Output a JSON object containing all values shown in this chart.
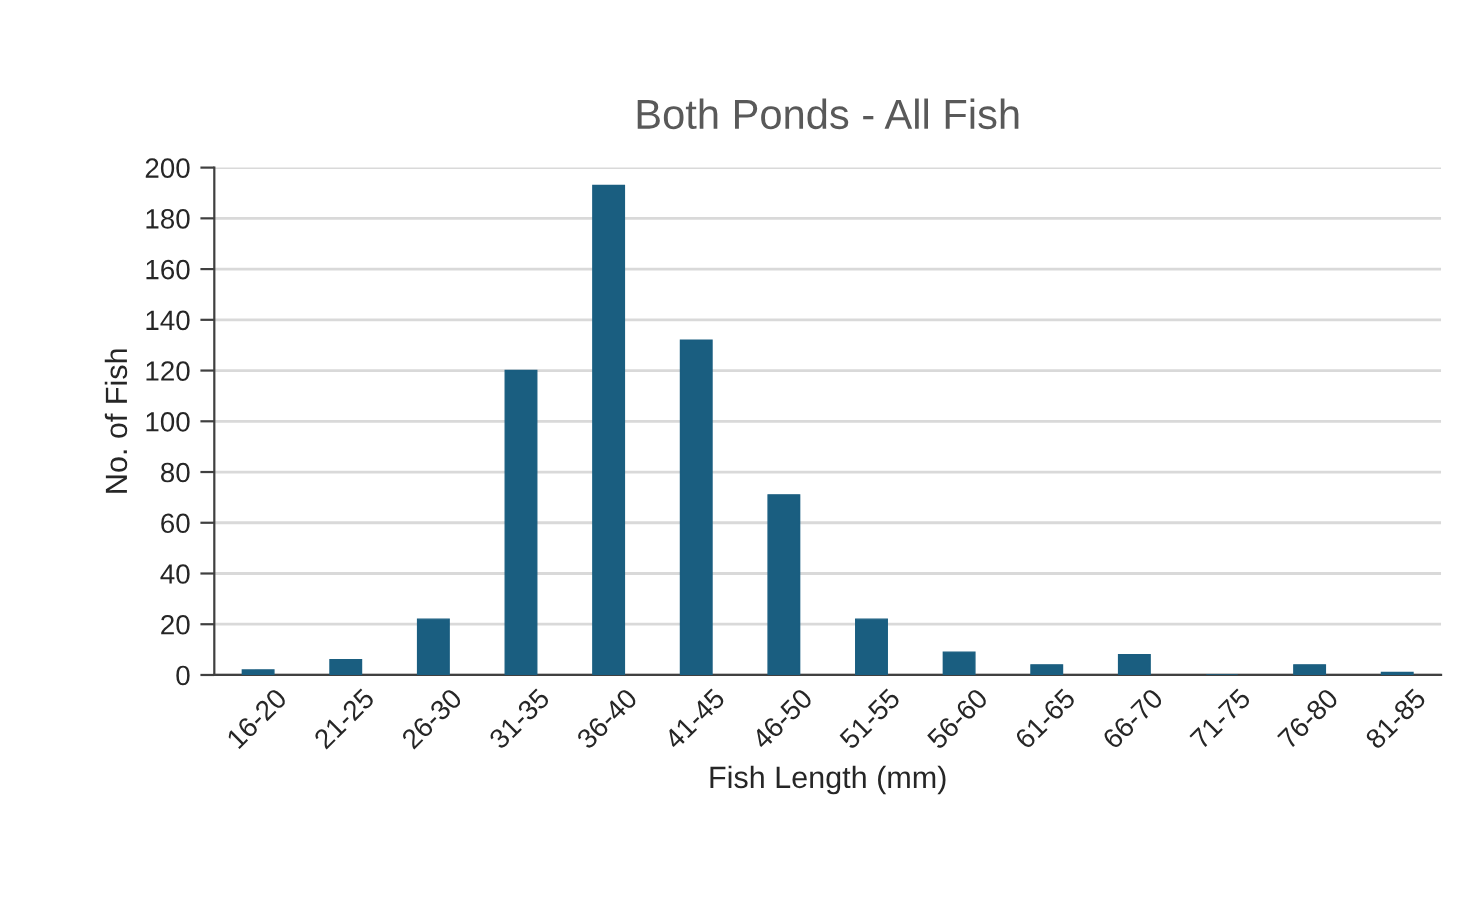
{
  "chart_data": {
    "type": "bar",
    "title": "Both Ponds - All Fish",
    "xlabel": "Fish Length (mm)",
    "ylabel": "No. of Fish",
    "categories": [
      "16-20",
      "21-25",
      "26-30",
      "31-35",
      "36-40",
      "41-45",
      "46-50",
      "51-55",
      "56-60",
      "61-65",
      "66-70",
      "71-75",
      "76-80",
      "81-85"
    ],
    "values": [
      2,
      6,
      22,
      120,
      193,
      132,
      71,
      22,
      9,
      4,
      8,
      0,
      4,
      1
    ],
    "color": "#1a5e80",
    "ylim": [
      0,
      200
    ],
    "yticks": [
      0,
      20,
      40,
      60,
      80,
      100,
      120,
      140,
      160,
      180,
      200
    ],
    "grid": "y",
    "legend": false
  }
}
